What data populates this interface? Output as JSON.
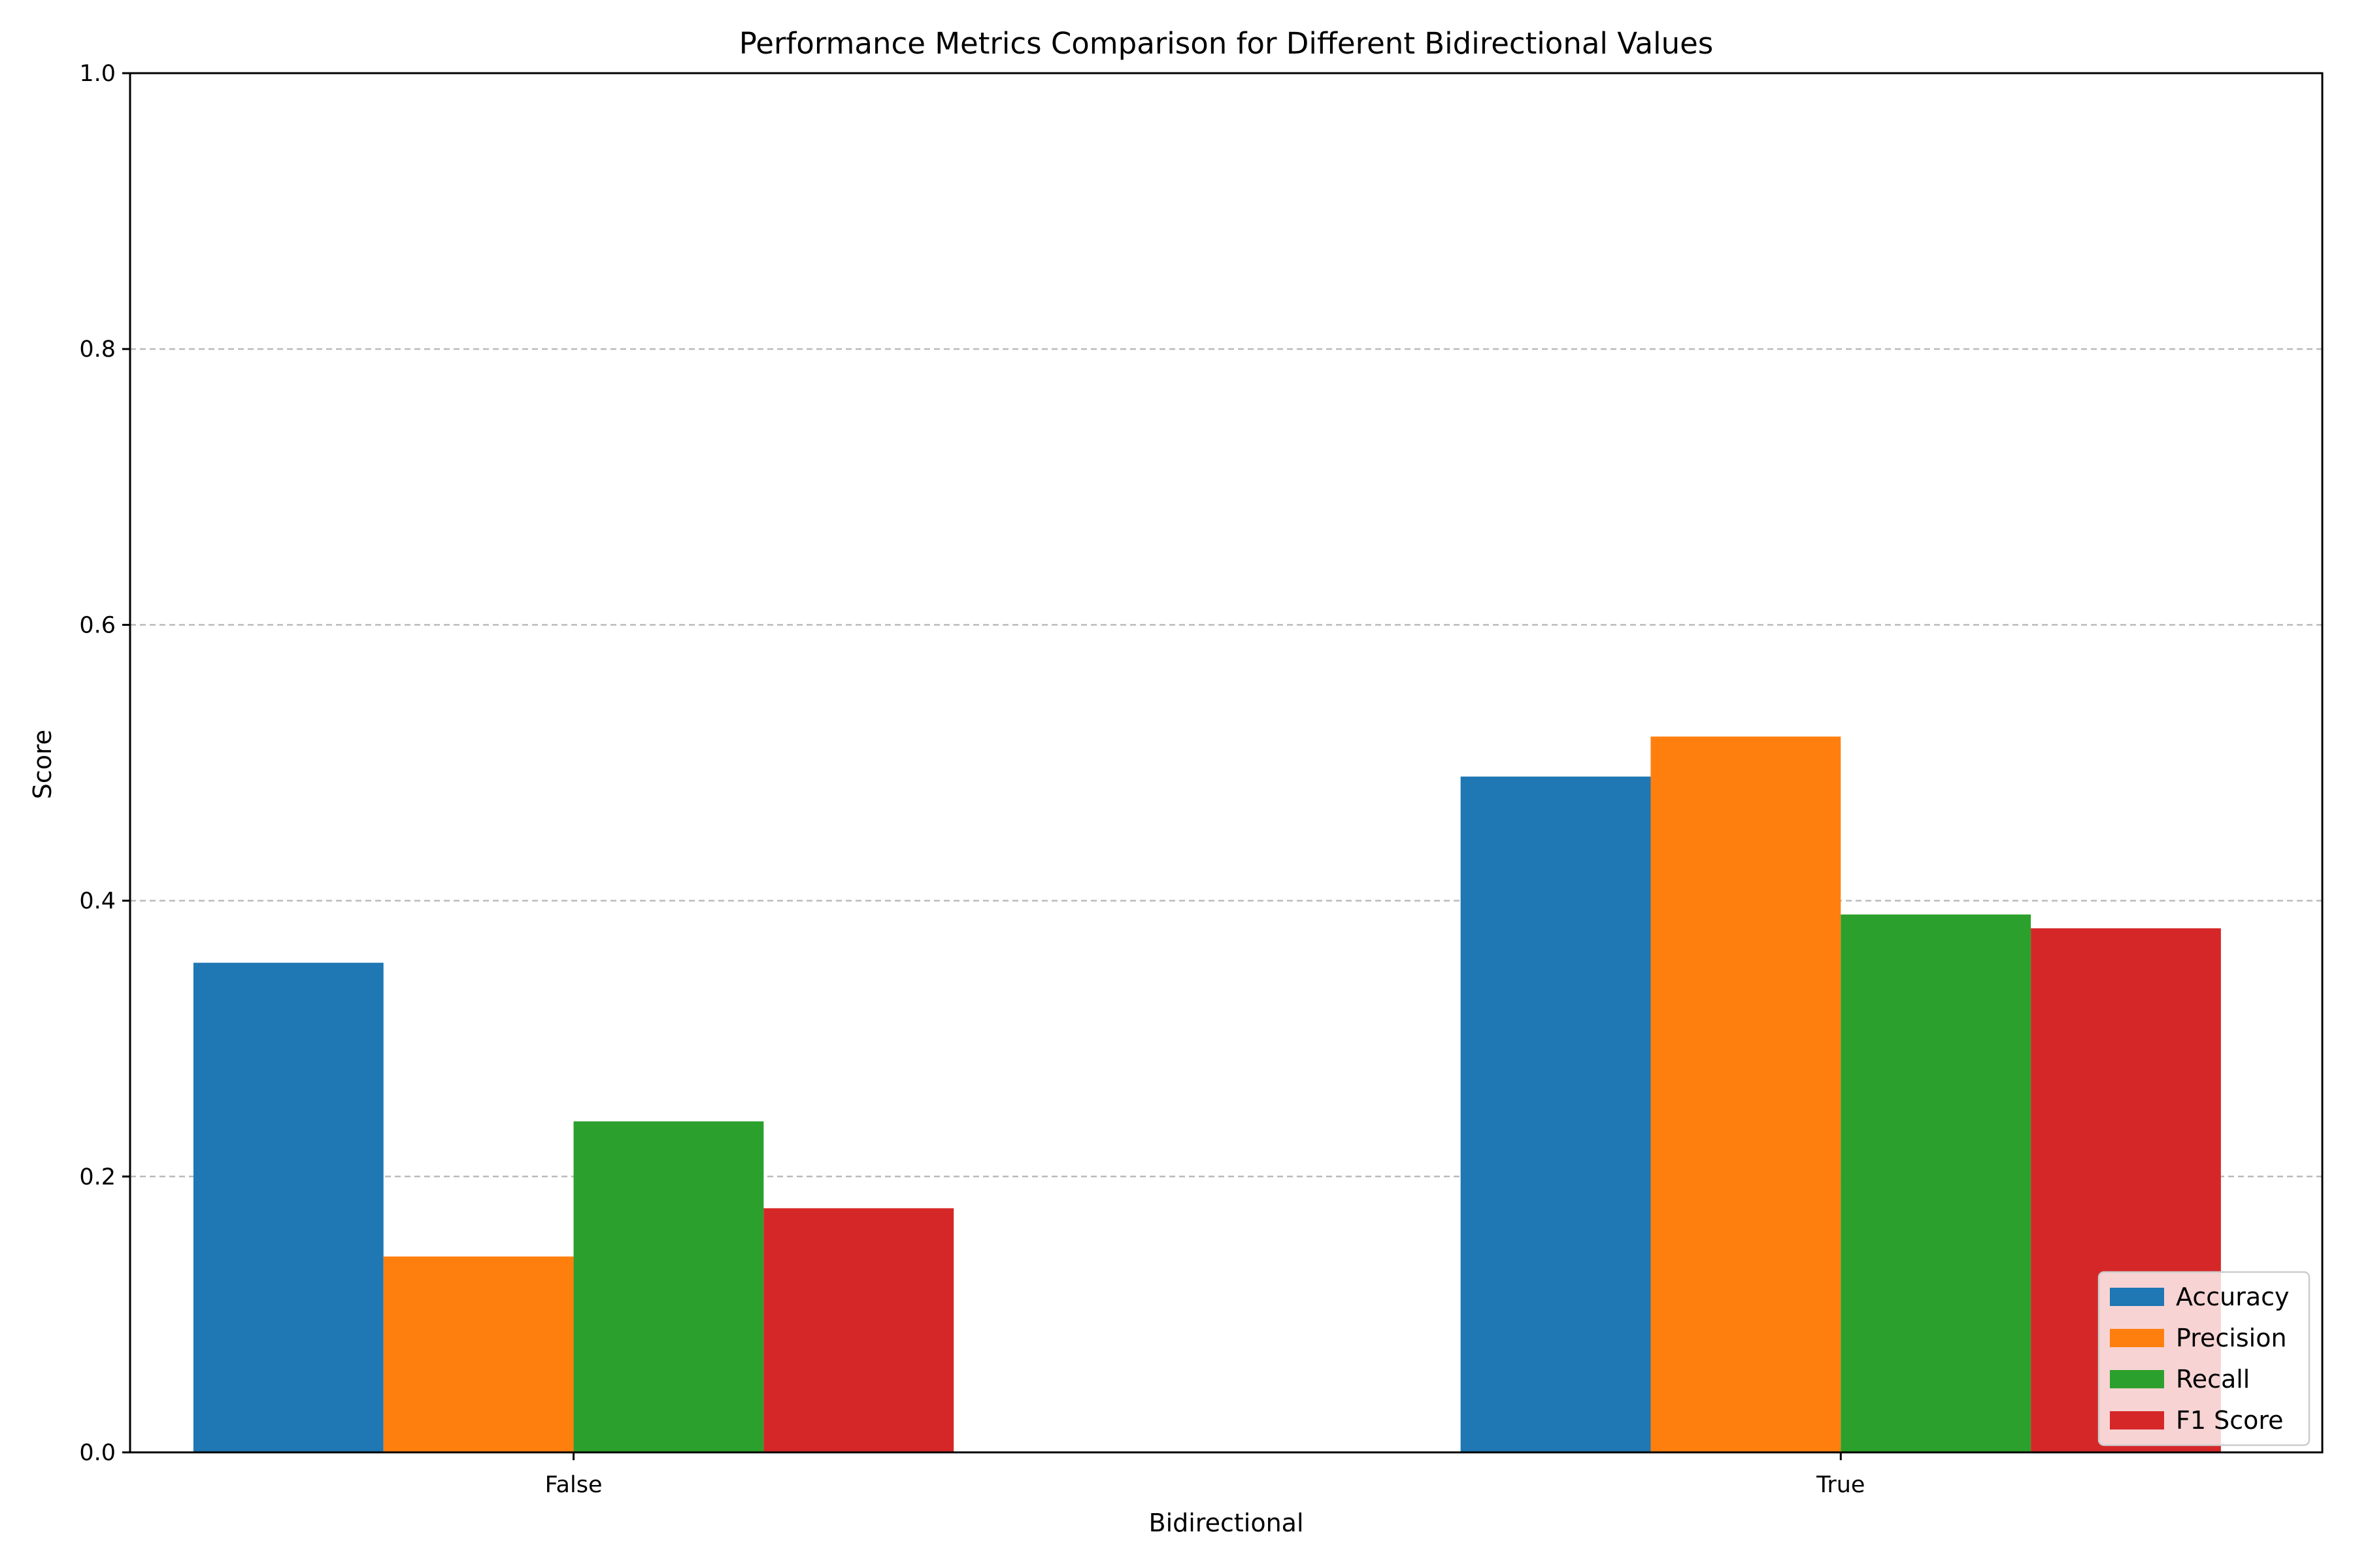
{
  "chart_data": {
    "type": "bar",
    "title": "Performance Metrics Comparison for Different Bidirectional Values",
    "xlabel": "Bidirectional",
    "ylabel": "Score",
    "categories": [
      "False",
      "True"
    ],
    "ylim": [
      0,
      1.0
    ],
    "yticks": [
      "0.0",
      "0.2",
      "0.4",
      "0.6",
      "0.8",
      "1.0"
    ],
    "grid": "y-dashed",
    "legend_position": "lower-right",
    "series": [
      {
        "name": "Accuracy",
        "color": "#1f77b4",
        "values": [
          0.355,
          0.49
        ]
      },
      {
        "name": "Precision",
        "color": "#ff7f0e",
        "values": [
          0.142,
          0.519
        ]
      },
      {
        "name": "Recall",
        "color": "#2ca02c",
        "values": [
          0.24,
          0.39
        ]
      },
      {
        "name": "F1 Score",
        "color": "#d62728",
        "values": [
          0.177,
          0.38
        ]
      }
    ]
  }
}
